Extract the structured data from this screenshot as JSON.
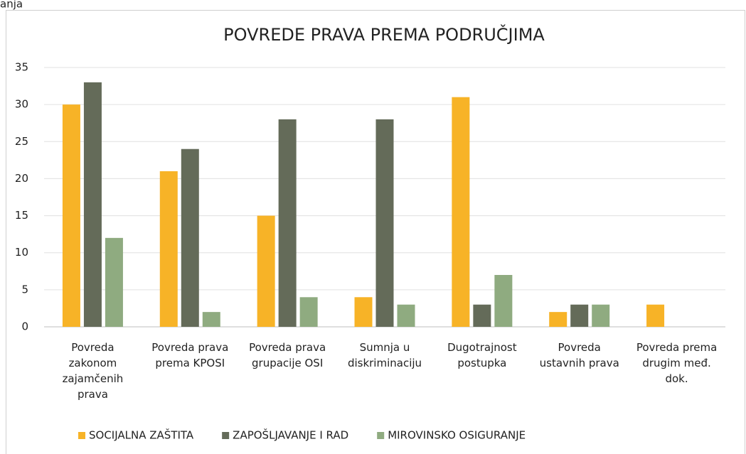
{
  "header_text": "anja",
  "chart_data": {
    "type": "bar",
    "title": "POVREDE PRAVA PREMA PODRUČJIMA",
    "categories": [
      "Povreda zakonom zajamčenih prava",
      "Povreda prava prema KPOSI",
      "Povreda prava grupacije OSI",
      "Sumnja u diskriminaciju",
      "Dugotrajnost postupka",
      "Povreda ustavnih prava",
      "Povreda prema drugim međ. dok."
    ],
    "series": [
      {
        "name": "SOCIJALNA ZAŠTITA",
        "color": "#f7b327",
        "values": [
          30,
          21,
          15,
          4,
          31,
          2,
          3
        ]
      },
      {
        "name": "ZAPOŠLJAVANJE I RAD",
        "color": "#646b59",
        "values": [
          33,
          24,
          28,
          28,
          3,
          3,
          0
        ]
      },
      {
        "name": "MIROVINSKO OSIGURANJE",
        "color": "#8fab80",
        "values": [
          12,
          2,
          4,
          3,
          7,
          3,
          0
        ]
      }
    ],
    "ylim": [
      0,
      35
    ],
    "yticks": [
      0,
      5,
      10,
      15,
      20,
      25,
      30,
      35
    ],
    "grid": true,
    "legend": "bottom"
  }
}
